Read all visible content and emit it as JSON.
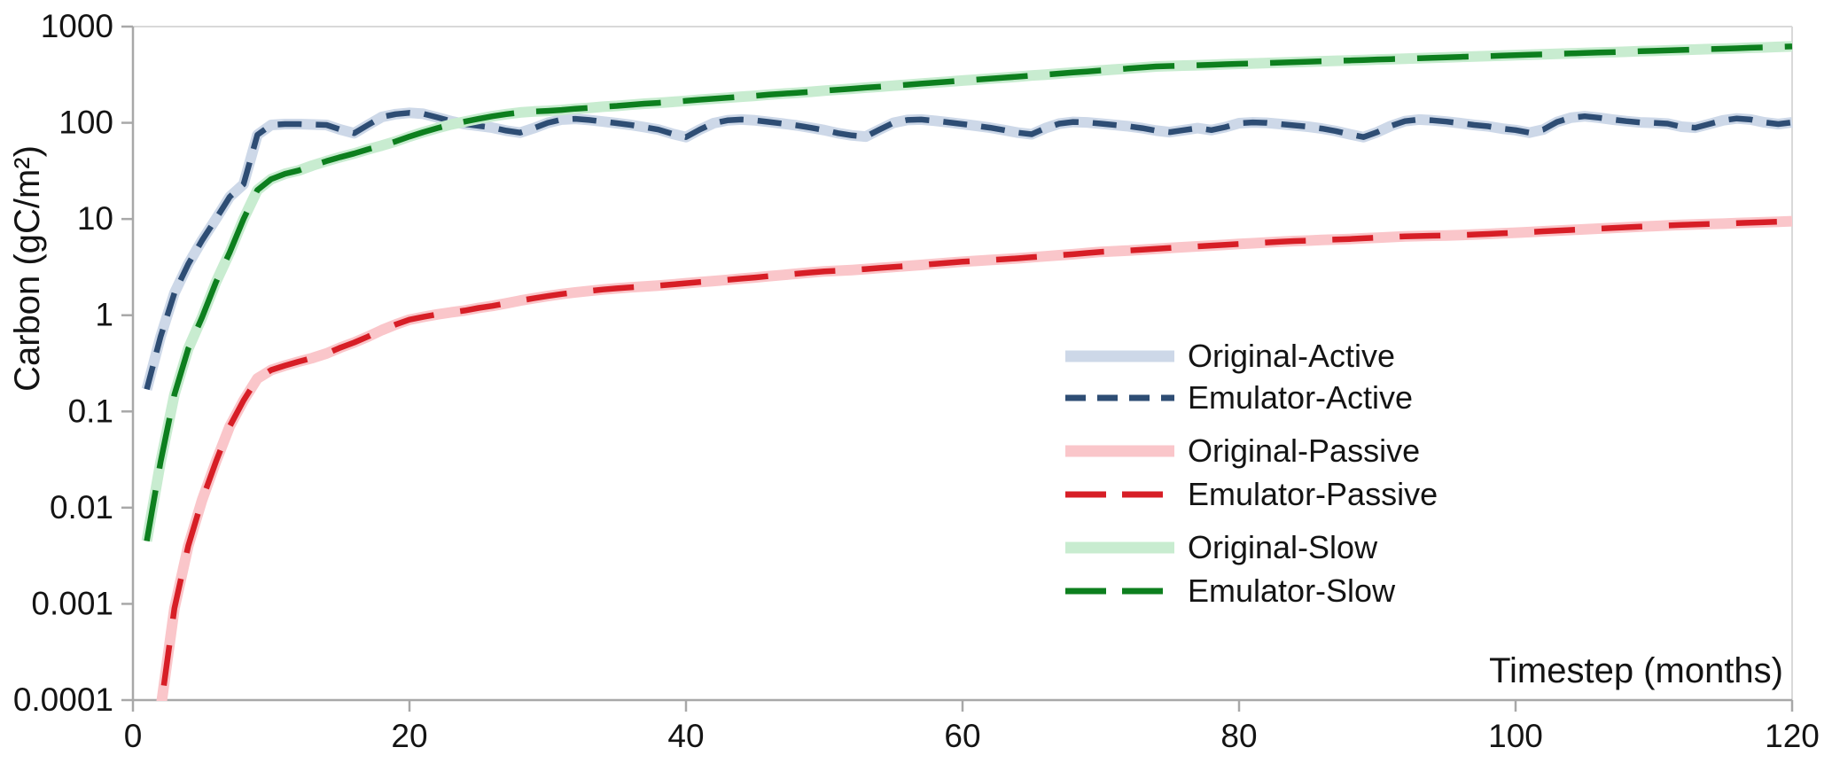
{
  "chart_data": {
    "type": "line",
    "title": "",
    "xlabel": "Timestep (months)",
    "ylabel": "Carbon (gC/m²)",
    "x_range": [
      0,
      120
    ],
    "y_scale": "log10",
    "y_range": [
      0.0001,
      1000
    ],
    "x_ticks": [
      0,
      20,
      40,
      60,
      80,
      100,
      120
    ],
    "y_ticks": [
      1000,
      100,
      10,
      1,
      0.1,
      0.01,
      0.001,
      0.0001
    ],
    "y_tick_labels": [
      "1000",
      "100",
      "10",
      "1",
      "0.1",
      "0.01",
      "0.001",
      "0.0001"
    ],
    "grid": false,
    "legend_position": "inside-right-center",
    "x": [
      1,
      2,
      3,
      4,
      5,
      6,
      7,
      8,
      9,
      10,
      11,
      12,
      13,
      14,
      15,
      16,
      17,
      18,
      19,
      20,
      21,
      22,
      23,
      24,
      25,
      26,
      27,
      28,
      29,
      30,
      31,
      32,
      33,
      34,
      35,
      36,
      37,
      38,
      39,
      40,
      41,
      42,
      43,
      44,
      45,
      46,
      47,
      48,
      49,
      50,
      51,
      52,
      53,
      54,
      55,
      56,
      57,
      58,
      59,
      60,
      61,
      62,
      63,
      64,
      65,
      66,
      67,
      68,
      69,
      70,
      71,
      72,
      73,
      74,
      75,
      76,
      77,
      78,
      79,
      80,
      81,
      82,
      83,
      84,
      85,
      86,
      87,
      88,
      89,
      90,
      91,
      92,
      93,
      94,
      95,
      96,
      97,
      98,
      99,
      100,
      101,
      102,
      103,
      104,
      105,
      106,
      107,
      108,
      109,
      110,
      111,
      112,
      113,
      114,
      115,
      116,
      117,
      118,
      119,
      120
    ],
    "series": [
      {
        "name": "Original-Active",
        "style": "band",
        "color": "#cdd8e8",
        "stroke_width": 12,
        "values": [
          0.17,
          0.6,
          1.7,
          3.4,
          6,
          10,
          17,
          23,
          75,
          95,
          97,
          97,
          96,
          95,
          85,
          78,
          95,
          115,
          123,
          127,
          124,
          114,
          104,
          97,
          93,
          89,
          83,
          79,
          88,
          100,
          108,
          110,
          107,
          103,
          99,
          95,
          90,
          85,
          77,
          71,
          85,
          99,
          106,
          108,
          106,
          102,
          98,
          94,
          89,
          84,
          78,
          74,
          72,
          85,
          100,
          107,
          108,
          105,
          101,
          97,
          93,
          89,
          84,
          79,
          76,
          88,
          98,
          102,
          101,
          98,
          95,
          92,
          88,
          83,
          80,
          84,
          88,
          84,
          90,
          99,
          101,
          100,
          97,
          94,
          91,
          87,
          82,
          76,
          71,
          80,
          93,
          104,
          108,
          106,
          103,
          99,
          95,
          92,
          87,
          84,
          79,
          85,
          102,
          113,
          117,
          113,
          108,
          104,
          101,
          100,
          98,
          91,
          89,
          97,
          106,
          111,
          108,
          101,
          97,
          101
        ]
      },
      {
        "name": "Emulator-Active",
        "style": "dashed",
        "color": "#2e4d74",
        "stroke_width": 6.5,
        "dash_pattern": [
          27,
          16
        ],
        "values": [
          0.17,
          0.6,
          1.7,
          3.4,
          6,
          10,
          17,
          23,
          75,
          95,
          97,
          97,
          96,
          95,
          85,
          78,
          95,
          115,
          123,
          127,
          124,
          114,
          104,
          97,
          93,
          89,
          83,
          79,
          88,
          100,
          108,
          110,
          107,
          103,
          99,
          95,
          90,
          85,
          77,
          71,
          85,
          99,
          106,
          108,
          106,
          102,
          98,
          94,
          89,
          84,
          78,
          74,
          72,
          85,
          100,
          107,
          108,
          105,
          101,
          97,
          93,
          89,
          84,
          79,
          76,
          88,
          98,
          102,
          101,
          98,
          95,
          92,
          88,
          83,
          80,
          84,
          88,
          84,
          90,
          99,
          101,
          100,
          97,
          94,
          91,
          87,
          82,
          76,
          71,
          80,
          93,
          104,
          108,
          106,
          103,
          99,
          95,
          92,
          87,
          84,
          79,
          85,
          102,
          113,
          117,
          113,
          108,
          104,
          101,
          100,
          98,
          91,
          89,
          97,
          106,
          111,
          108,
          101,
          97,
          101
        ]
      },
      {
        "name": "Original-Passive",
        "style": "band",
        "color": "#fac6ca",
        "stroke_width": 12,
        "values": [
          3e-05,
          8e-05,
          0.0009,
          0.004,
          0.012,
          0.03,
          0.07,
          0.13,
          0.22,
          0.27,
          0.3,
          0.33,
          0.36,
          0.4,
          0.46,
          0.52,
          0.6,
          0.7,
          0.8,
          0.9,
          0.96,
          1.02,
          1.07,
          1.12,
          1.19,
          1.25,
          1.33,
          1.42,
          1.5,
          1.58,
          1.66,
          1.73,
          1.79,
          1.85,
          1.9,
          1.95,
          1.99,
          2.03,
          2.09,
          2.15,
          2.21,
          2.27,
          2.33,
          2.4,
          2.47,
          2.55,
          2.62,
          2.7,
          2.78,
          2.86,
          2.9,
          2.95,
          3.02,
          3.1,
          3.17,
          3.25,
          3.33,
          3.42,
          3.51,
          3.6,
          3.67,
          3.75,
          3.82,
          3.9,
          4.0,
          4.1,
          4.2,
          4.3,
          4.43,
          4.56,
          4.63,
          4.7,
          4.8,
          4.9,
          5.0,
          5.1,
          5.2,
          5.3,
          5.4,
          5.5,
          5.6,
          5.7,
          5.8,
          5.9,
          5.97,
          6.05,
          6.12,
          6.2,
          6.3,
          6.4,
          6.5,
          6.6,
          6.65,
          6.7,
          6.75,
          6.8,
          6.9,
          7.0,
          7.1,
          7.2,
          7.32,
          7.45,
          7.57,
          7.7,
          7.82,
          7.95,
          8.07,
          8.2,
          8.32,
          8.45,
          8.57,
          8.7,
          8.78,
          8.87,
          8.95,
          9.05,
          9.15,
          9.27,
          9.38,
          9.5
        ]
      },
      {
        "name": "Emulator-Passive",
        "style": "dashed",
        "color": "#d71e26",
        "stroke_width": 6.5,
        "dash_pattern": [
          46,
          30
        ],
        "values": [
          3e-05,
          8e-05,
          0.0009,
          0.004,
          0.012,
          0.03,
          0.07,
          0.13,
          0.22,
          0.27,
          0.3,
          0.33,
          0.36,
          0.4,
          0.46,
          0.52,
          0.6,
          0.7,
          0.8,
          0.9,
          0.96,
          1.02,
          1.07,
          1.12,
          1.19,
          1.25,
          1.33,
          1.42,
          1.5,
          1.58,
          1.66,
          1.73,
          1.79,
          1.85,
          1.9,
          1.95,
          1.99,
          2.03,
          2.09,
          2.15,
          2.21,
          2.27,
          2.33,
          2.4,
          2.47,
          2.55,
          2.62,
          2.7,
          2.78,
          2.86,
          2.9,
          2.95,
          3.02,
          3.1,
          3.17,
          3.25,
          3.33,
          3.42,
          3.51,
          3.6,
          3.67,
          3.75,
          3.82,
          3.9,
          4.0,
          4.1,
          4.2,
          4.3,
          4.43,
          4.56,
          4.63,
          4.7,
          4.8,
          4.9,
          5.0,
          5.1,
          5.2,
          5.3,
          5.4,
          5.5,
          5.6,
          5.7,
          5.8,
          5.9,
          5.97,
          6.05,
          6.12,
          6.2,
          6.3,
          6.4,
          6.5,
          6.6,
          6.65,
          6.7,
          6.75,
          6.8,
          6.9,
          7.0,
          7.1,
          7.2,
          7.32,
          7.45,
          7.57,
          7.7,
          7.82,
          7.95,
          8.07,
          8.2,
          8.32,
          8.45,
          8.57,
          8.7,
          8.78,
          8.87,
          8.95,
          9.05,
          9.15,
          9.27,
          9.38,
          9.5
        ]
      },
      {
        "name": "Original-Slow",
        "style": "band",
        "color": "#c8ecd0",
        "stroke_width": 12,
        "values": [
          0.0045,
          0.03,
          0.15,
          0.45,
          0.95,
          2.2,
          4.5,
          10,
          20,
          26,
          29.5,
          32,
          36,
          40,
          44,
          48,
          53,
          58,
          64,
          72,
          80,
          88,
          96,
          103,
          110,
          117,
          123,
          128,
          131,
          133,
          136,
          140,
          143,
          147,
          150,
          154,
          158,
          161,
          165,
          169,
          174,
          178,
          182,
          187,
          191,
          196,
          201,
          205,
          210,
          216,
          221,
          226,
          232,
          237,
          243,
          249,
          255,
          262,
          268,
          275,
          281,
          288,
          295,
          302,
          310,
          317,
          325,
          333,
          341,
          350,
          358,
          367,
          376,
          385,
          389,
          393,
          397,
          401,
          406,
          410,
          414,
          418,
          423,
          427,
          432,
          436,
          441,
          445,
          450,
          455,
          459,
          464,
          469,
          474,
          479,
          484,
          489,
          494,
          499,
          505,
          510,
          515,
          521,
          526,
          531,
          537,
          542,
          548,
          554,
          559,
          565,
          571,
          577,
          583,
          589,
          595,
          602,
          608,
          615,
          622
        ]
      },
      {
        "name": "Emulator-Slow",
        "style": "dashed",
        "color": "#0d7f1e",
        "stroke_width": 6.5,
        "dash_pattern": [
          58,
          25
        ],
        "values": [
          0.0045,
          0.03,
          0.15,
          0.45,
          0.95,
          2.2,
          4.5,
          10,
          20,
          26,
          29.5,
          32,
          36,
          40,
          44,
          48,
          53,
          58,
          64,
          72,
          80,
          88,
          96,
          103,
          110,
          117,
          123,
          128,
          131,
          133,
          136,
          140,
          143,
          147,
          150,
          154,
          158,
          161,
          165,
          169,
          174,
          178,
          182,
          187,
          191,
          196,
          201,
          205,
          210,
          216,
          221,
          226,
          232,
          237,
          243,
          249,
          255,
          262,
          268,
          275,
          281,
          288,
          295,
          302,
          310,
          317,
          325,
          333,
          341,
          350,
          358,
          367,
          376,
          385,
          389,
          393,
          397,
          401,
          406,
          410,
          414,
          418,
          423,
          427,
          432,
          436,
          441,
          445,
          450,
          455,
          459,
          464,
          469,
          474,
          479,
          484,
          489,
          494,
          499,
          505,
          510,
          515,
          521,
          526,
          531,
          537,
          542,
          548,
          554,
          559,
          565,
          571,
          577,
          583,
          589,
          595,
          602,
          608,
          615,
          622
        ]
      }
    ]
  },
  "style_colors": {
    "axis_line": "#a8a8a8",
    "panel_border": "#d9d9d9",
    "text": "#141414",
    "background": "#ffffff"
  }
}
